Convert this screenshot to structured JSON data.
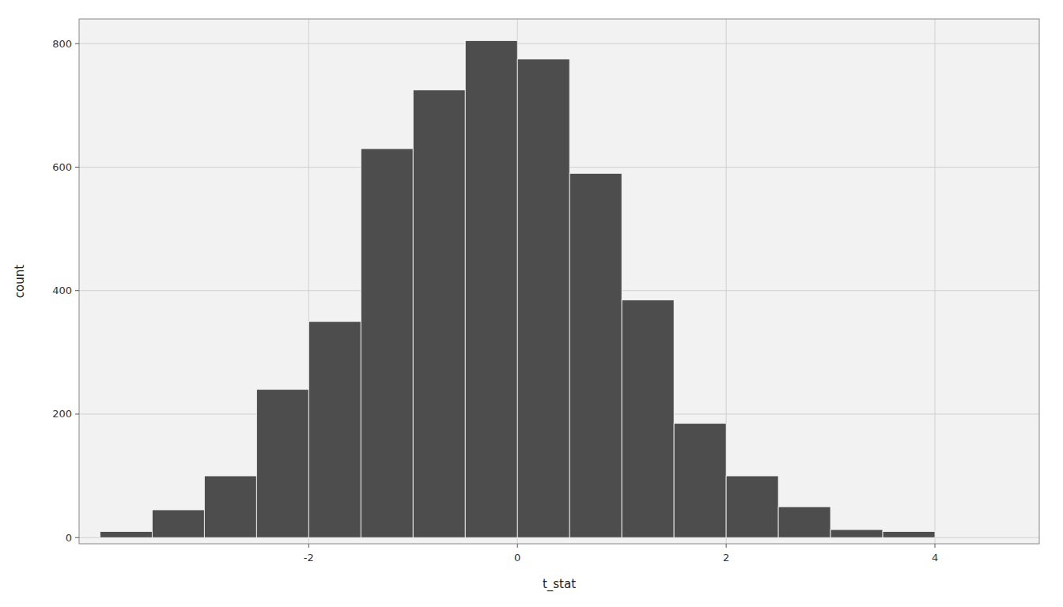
{
  "chart_data": {
    "type": "histogram",
    "xlabel": "t_stat",
    "ylabel": "count",
    "bins": [
      -4.0,
      -3.5,
      -3.0,
      -2.5,
      -2.0,
      -1.5,
      -1.0,
      -0.5,
      0.0,
      0.5,
      1.0,
      1.5,
      2.0,
      2.5,
      3.0,
      3.5,
      4.0
    ],
    "values": [
      10,
      45,
      100,
      240,
      350,
      630,
      725,
      805,
      775,
      590,
      385,
      185,
      100,
      50,
      13,
      10
    ],
    "color": "#4d4d4d",
    "xlim": [
      -4.2,
      5.0
    ],
    "ylim": [
      -10,
      840
    ],
    "xticks": [
      -2,
      0,
      2,
      4
    ],
    "yticks": [
      0,
      200,
      400,
      600,
      800
    ],
    "grid": true
  }
}
